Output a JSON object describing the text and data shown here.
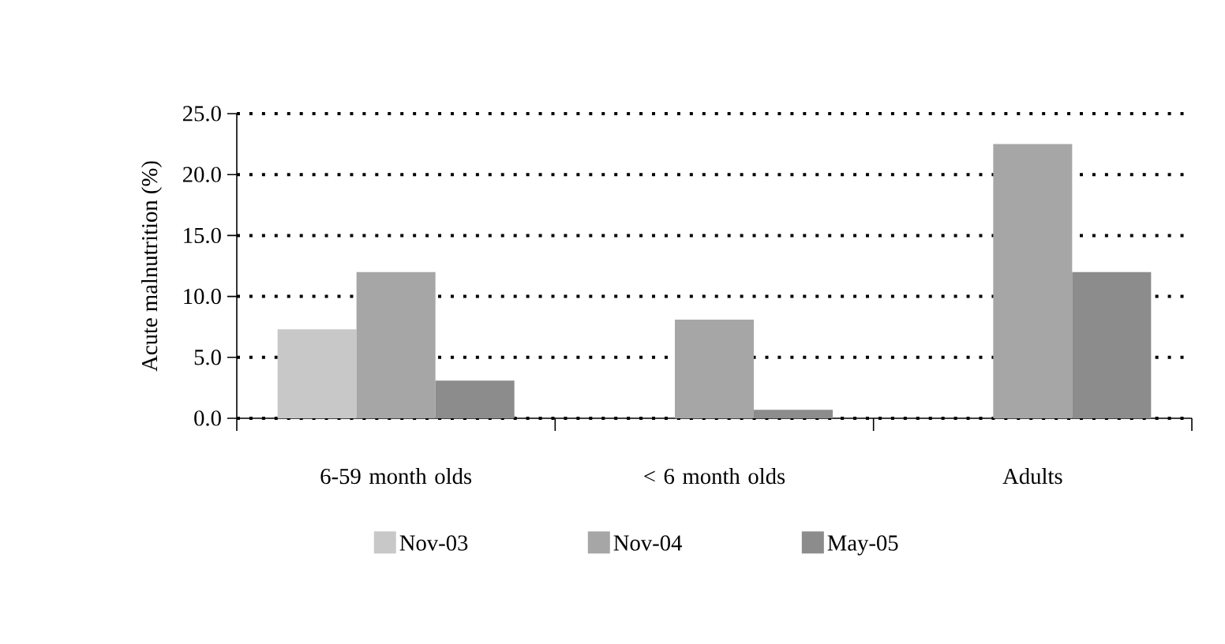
{
  "chart_data": {
    "type": "bar",
    "ylabel": "Acute malnutrition (%)",
    "categories": [
      "6-59 month olds",
      "< 6 month olds",
      "Adults"
    ],
    "series": [
      {
        "name": "Nov-03",
        "color": "#c8c8c8",
        "values": [
          7.3,
          null,
          null
        ]
      },
      {
        "name": "Nov-04",
        "color": "#a6a6a6",
        "values": [
          12.0,
          8.1,
          22.5
        ]
      },
      {
        "name": "May-05",
        "color": "#8c8c8c",
        "values": [
          3.1,
          0.7,
          12.0
        ]
      }
    ],
    "ylim": [
      0,
      25
    ],
    "yticks": [
      {
        "value": 0,
        "label": "0.0"
      },
      {
        "value": 5,
        "label": "5.0"
      },
      {
        "value": 10,
        "label": "10.0"
      },
      {
        "value": 15,
        "label": "15.0"
      },
      {
        "value": 20,
        "label": "20.0"
      },
      {
        "value": 25,
        "label": "25.0"
      }
    ],
    "grid": "y",
    "legend": "bottom"
  }
}
